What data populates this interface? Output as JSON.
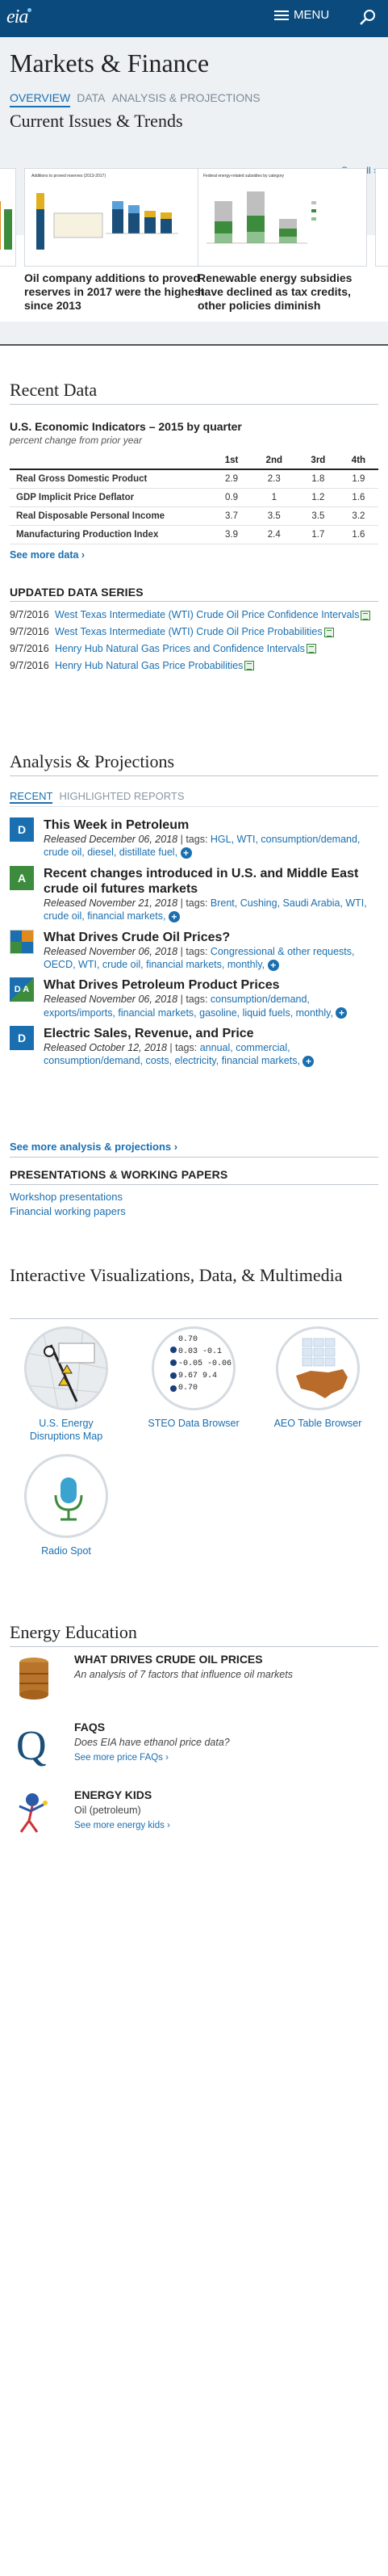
{
  "header": {
    "logo": "eia",
    "menu_label": "MENU"
  },
  "page": {
    "title": "Markets & Finance",
    "tabs": [
      {
        "label": "OVERVIEW"
      },
      {
        "label": "DATA"
      },
      {
        "label": "ANALYSIS & PROJECTIONS"
      }
    ]
  },
  "current_issues": {
    "heading": "Current Issues & Trends",
    "see_all": "See all ›",
    "cards": [
      {
        "title": "Oil company additions to proved reserves in 2017 were the highest since 2013"
      },
      {
        "title": "Renewable energy subsidies have declined as tax credits, other policies diminish"
      }
    ]
  },
  "recent_data": {
    "heading": "Recent Data",
    "indicators": {
      "title": "U.S. Economic Indicators – 2015 by quarter",
      "subtitle": "percent change from prior year",
      "columns": [
        "1st",
        "2nd",
        "3rd",
        "4th"
      ],
      "rows": [
        {
          "label": "Real Gross Domestic Product",
          "values": [
            "2.9",
            "2.3",
            "1.8",
            "1.9"
          ]
        },
        {
          "label": "GDP Implicit Price Deflator",
          "values": [
            "0.9",
            "1",
            "1.2",
            "1.6"
          ]
        },
        {
          "label": "Real Disposable Personal Income",
          "values": [
            "3.7",
            "3.5",
            "3.5",
            "3.2"
          ]
        },
        {
          "label": "Manufacturing Production Index",
          "values": [
            "3.9",
            "2.4",
            "1.7",
            "1.6"
          ]
        }
      ],
      "see_more": "See more data ›"
    }
  },
  "updated_series": {
    "heading": "UPDATED DATA SERIES",
    "items": [
      {
        "date": "9/7/2016",
        "label": "West Texas Intermediate (WTI) Crude Oil Price Confidence Intervals"
      },
      {
        "date": "9/7/2016",
        "label": "West Texas Intermediate (WTI) Crude Oil Price Probabilities"
      },
      {
        "date": "9/7/2016",
        "label": "Henry Hub Natural Gas Prices and Confidence Intervals"
      },
      {
        "date": "9/7/2016",
        "label": "Henry Hub Natural Gas Price Probabilities"
      }
    ]
  },
  "analysis": {
    "heading": "Analysis & Projections",
    "tabs": [
      {
        "label": "RECENT"
      },
      {
        "label": "HIGHLIGHTED REPORTS"
      }
    ],
    "released_prefix": "Released",
    "tags_prefix": "tags:",
    "articles": [
      {
        "badge": "D",
        "color": "#1a6fb0",
        "title": "This Week in Petroleum",
        "date": "December 06, 2018",
        "tags": "HGL, WTI, consumption/demand, crude oil, diesel, distillate fuel,"
      },
      {
        "badge": "A",
        "color": "#3d8b3d",
        "title": "Recent changes introduced in U.S. and Middle East crude oil futures markets",
        "date": "November 21, 2018",
        "tags": "Brent, Cushing, Saudi Arabia, WTI, crude oil, financial markets,"
      },
      {
        "badge": "",
        "color": "#e08a1e",
        "title": "What Drives Crude Oil Prices?",
        "date": "November 06, 2018",
        "tags": "Congressional & other requests, OECD, WTI, crude oil, financial markets, monthly,"
      },
      {
        "badge": "D A",
        "color": "#1a6fb0",
        "title": "What Drives Petroleum Product Prices",
        "date": "November 06, 2018",
        "tags": "consumption/demand, exports/imports, financial markets, gasoline, liquid fuels, monthly,"
      },
      {
        "badge": "D",
        "color": "#1a6fb0",
        "title": "Electric Sales, Revenue, and Price",
        "date": "October 12, 2018",
        "tags": "annual, commercial, consumption/demand, costs, electricity, financial markets,"
      }
    ],
    "see_more": "See more analysis & projections ›"
  },
  "presentations": {
    "heading": "PRESENTATIONS & WORKING PAPERS",
    "links": [
      "Workshop presentations",
      "Financial working papers"
    ]
  },
  "interactive": {
    "heading": "Interactive Visualizations, Data, & Multimedia",
    "items": [
      {
        "label": "U.S. Energy Disruptions Map"
      },
      {
        "label": "STEO Data Browser"
      },
      {
        "label": "AEO Table Browser"
      },
      {
        "label": "Radio Spot"
      }
    ],
    "steo_values": [
      "0.70",
      "0.03",
      "-0.1",
      "-0.05",
      "-0.06",
      "9.67",
      "9.4",
      "0.70"
    ]
  },
  "education": {
    "heading": "Energy Education",
    "items": [
      {
        "title": "WHAT DRIVES CRUDE OIL PRICES",
        "desc": "An analysis of 7 factors that influence oil markets",
        "link": ""
      },
      {
        "title": "FAQS",
        "desc": "Does EIA have ethanol price data?",
        "link": "See more price FAQs ›"
      },
      {
        "title": "ENERGY KIDS",
        "desc": "Oil (petroleum)",
        "link": "See more energy kids ›"
      }
    ]
  },
  "colors": {
    "header": "#0b4a7c",
    "accent": "#1a6fb0",
    "green": "#3d8b3d",
    "orange": "#e08a1e"
  }
}
